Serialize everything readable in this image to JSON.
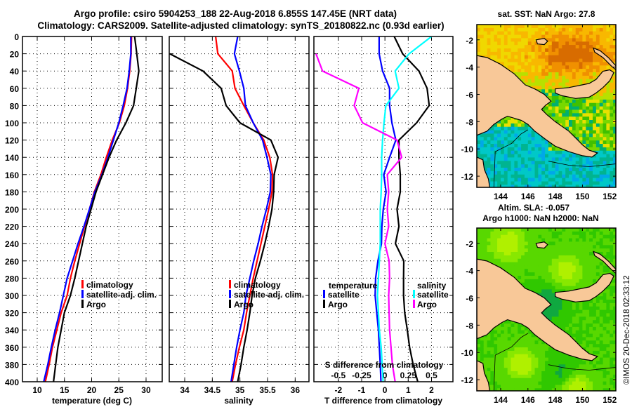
{
  "header": {
    "line1": "Argo profile: csiro 5904253_188 22-Aug-2018 6.855S 147.45E (NRT data)",
    "line2": "Climatology: CARS2009. Satellite-adjusted climatology: synTS_20180822.nc (0.93d earlier)"
  },
  "colors": {
    "climatology": "#ff0000",
    "satellite": "#0000ff",
    "argo": "#000000",
    "sal_satellite": "#00ffff",
    "sal_argo": "#ff00ff",
    "land": "#f8c898"
  },
  "chart_data": [
    {
      "type": "line",
      "title": "",
      "xlabel": "temperature (deg C)",
      "ylabel": "",
      "xlim": [
        7.29,
        32.97
      ],
      "ylim": [
        400,
        0
      ],
      "xticks": [
        10,
        15,
        20,
        25,
        30
      ],
      "yticks": [
        0,
        20,
        40,
        60,
        80,
        100,
        120,
        140,
        160,
        180,
        200,
        220,
        240,
        260,
        280,
        300,
        320,
        340,
        360,
        380,
        400
      ],
      "grid": true,
      "legend": {
        "placement": "lower-right",
        "entries": [
          "climatology",
          "satellite-adj. clim.",
          "Argo"
        ]
      },
      "depth": [
        0,
        20,
        40,
        60,
        80,
        100,
        120,
        140,
        160,
        180,
        200,
        220,
        240,
        260,
        280,
        300,
        320,
        340,
        360,
        380,
        400
      ],
      "series": [
        {
          "name": "climatology",
          "color": "#ff0000",
          "values": [
            27.33,
            27.25,
            27.0,
            26.6,
            26.0,
            25.1,
            23.8,
            22.7,
            21.7,
            20.5,
            19.6,
            18.7,
            17.8,
            16.9,
            16.1,
            15.5,
            14.4,
            13.6,
            12.8,
            12.2,
            11.5
          ]
        },
        {
          "name": "satellite-adj. clim.",
          "color": "#0000ff",
          "values": [
            27.2,
            27.2,
            26.9,
            26.5,
            25.8,
            25.0,
            24.0,
            23.0,
            21.9,
            20.6,
            19.6,
            18.6,
            17.5,
            16.5,
            15.5,
            14.8,
            14.1,
            13.3,
            12.6,
            11.95,
            11.2
          ]
        },
        {
          "name": "Argo",
          "color": "#000000",
          "values": [
            27.9,
            28.3,
            28.67,
            28.2,
            27.7,
            26.3,
            24.6,
            23.2,
            22.0,
            20.8,
            19.9,
            19.0,
            18.3,
            17.6,
            16.9,
            16.1,
            15.0,
            14.4,
            13.8,
            13.4,
            13.0
          ]
        }
      ]
    },
    {
      "type": "line",
      "title": "",
      "xlabel": "salinity",
      "ylabel": "",
      "xlim": [
        33.72,
        36.25
      ],
      "ylim": [
        400,
        0
      ],
      "xticks": [
        34,
        34.5,
        35,
        35.5,
        36
      ],
      "grid": true,
      "legend": {
        "placement": "lower-right",
        "entries": [
          "climatology",
          "satellite-adj. clim.",
          "Argo"
        ]
      },
      "depth": [
        0,
        20,
        40,
        60,
        80,
        100,
        120,
        140,
        160,
        180,
        200,
        220,
        240,
        260,
        280,
        300,
        320,
        340,
        360,
        380,
        400
      ],
      "series": [
        {
          "name": "climatology",
          "color": "#ff0000",
          "values": [
            34.56,
            34.6,
            34.86,
            34.91,
            35.07,
            35.24,
            35.43,
            35.54,
            35.59,
            35.58,
            35.52,
            35.45,
            35.38,
            35.31,
            35.24,
            35.18,
            35.12,
            35.07,
            34.99,
            34.92,
            34.86
          ]
        },
        {
          "name": "satellite-adj. clim.",
          "color": "#0000ff",
          "values": [
            34.96,
            34.9,
            34.99,
            35.07,
            35.1,
            35.24,
            35.41,
            35.49,
            35.56,
            35.55,
            35.48,
            35.4,
            35.33,
            35.25,
            35.18,
            35.11,
            35.07,
            35.0,
            34.94,
            34.89,
            34.84
          ]
        },
        {
          "name": "Argo",
          "color": "#000000",
          "values": [
            null,
            33.73,
            34.33,
            34.66,
            34.75,
            35.0,
            35.56,
            35.69,
            35.62,
            35.61,
            35.58,
            35.52,
            35.45,
            35.37,
            35.28,
            35.22,
            35.18,
            35.13,
            35.07,
            35.02,
            34.96
          ]
        }
      ]
    },
    {
      "type": "line",
      "title": "",
      "xlabel": "T difference from climatology",
      "x2label": "S difference from climatology",
      "ylabel": "",
      "xlim": [
        -3.05,
        2.92
      ],
      "x2lim": [
        -0.7625,
        0.73
      ],
      "ylim": [
        400,
        0
      ],
      "xticks": [
        -2,
        -1,
        0,
        1,
        2
      ],
      "x2ticks": [
        -0.5,
        -0.25,
        0,
        0.25,
        0.5
      ],
      "grid": true,
      "legend": {
        "placement": "lower",
        "temperature_header": "temperature",
        "salinity_header": "salinity",
        "temperature_entries": [
          "satellite",
          "Argo"
        ],
        "salinity_entries": [
          "satellite",
          "Argo"
        ]
      },
      "depth": [
        0,
        20,
        40,
        60,
        80,
        100,
        120,
        140,
        160,
        180,
        200,
        220,
        240,
        260,
        280,
        300,
        320,
        340,
        360,
        380,
        400
      ],
      "series": [
        {
          "name": "temperature satellite",
          "axis": "T",
          "color": "#0000ff",
          "values": [
            -0.25,
            -0.25,
            -0.1,
            0.2,
            0.2,
            0.3,
            0.47,
            0.2,
            -0.05,
            0.05,
            -0.07,
            -0.13,
            -0.15,
            -0.3,
            -0.4,
            -0.42,
            -0.35,
            -0.28,
            -0.24,
            -0.2,
            -0.17
          ]
        },
        {
          "name": "temperature Argo",
          "axis": "T",
          "color": "#000000",
          "values": [
            0.4,
            0.76,
            1.46,
            1.81,
            1.9,
            1.36,
            0.6,
            0.6,
            0.66,
            0.66,
            0.52,
            0.6,
            0.45,
            0.81,
            0.8,
            0.8,
            0.85,
            0.96,
            1.06,
            1.21,
            1.41
          ]
        },
        {
          "name": "salinity satellite",
          "axis": "S",
          "color": "#00ffff",
          "values": [
            0.5,
            0.26,
            0.11,
            0.15,
            0.01,
            -0.01,
            -0.025,
            -0.035,
            -0.035,
            -0.04,
            -0.05,
            -0.05,
            -0.05,
            -0.06,
            -0.07,
            -0.08,
            -0.07,
            -0.06,
            -0.04,
            -0.03,
            -0.02
          ]
        },
        {
          "name": "salinity Argo",
          "axis": "S",
          "color": "#ff00ff",
          "values": [
            null,
            -0.74,
            -0.67,
            -0.28,
            -0.33,
            -0.24,
            0.13,
            0.18,
            0.025,
            0.04,
            0.025,
            0.04,
            0.0,
            0.045,
            0.05,
            0.04,
            0.045,
            0.05,
            0.065,
            0.08,
            0.11
          ]
        }
      ]
    }
  ],
  "maps": [
    {
      "title": "sat. SST: NaN Argo: 27.8",
      "title2": "",
      "kind": "sst",
      "lon_range": [
        142.25,
        152.45
      ],
      "lat_range": [
        -12.82,
        -0.88
      ],
      "lon_ticks": [
        144,
        146,
        148,
        150,
        152
      ],
      "lat_ticks": [
        -2,
        -4,
        -6,
        -8,
        -10,
        -12
      ]
    },
    {
      "title": "Altim. SLA: -0.057",
      "title2": "Argo h1000: NaN h2000: NaN",
      "kind": "sla",
      "lon_range": [
        142.25,
        152.45
      ],
      "lat_range": [
        -12.82,
        -0.88
      ],
      "lon_ticks": [
        144,
        146,
        148,
        150,
        152
      ],
      "lat_ticks": [
        -2,
        -4,
        -6,
        -8,
        -10,
        -12
      ]
    }
  ],
  "footer": {
    "credit": "©IMOS 20-Dec-2018 02:33:12"
  }
}
